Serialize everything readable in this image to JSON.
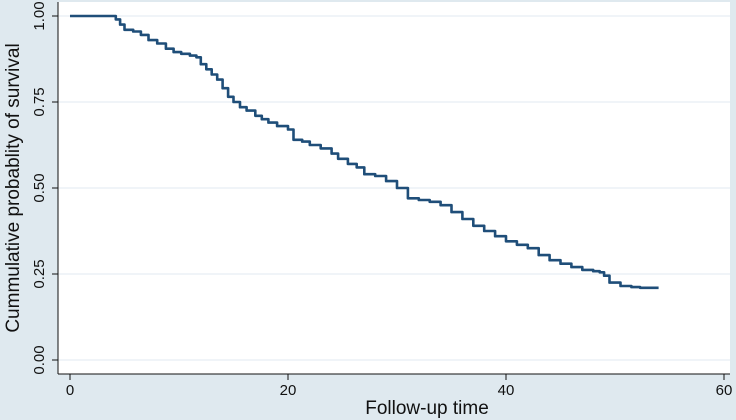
{
  "chart_data": {
    "type": "line",
    "title": "",
    "xlabel": "Follow-up time",
    "ylabel": "Cummulative probablity of survival",
    "xlim": [
      0,
      60
    ],
    "ylim": [
      0,
      1
    ],
    "x_ticks": [
      0,
      20,
      40,
      60
    ],
    "x_tick_labels": [
      "0",
      "20",
      "40",
      "60"
    ],
    "y_ticks": [
      0,
      0.25,
      0.5,
      0.75,
      1.0
    ],
    "y_tick_labels": [
      "0.00",
      "0.25",
      "0.50",
      "0.75",
      "1.00"
    ],
    "grid": "horizontal",
    "line_color": "#1f4e79",
    "plot_background": "#ffffff",
    "outer_background": "#dfe9ef",
    "series": [
      {
        "x": [
          0,
          3.8,
          4.2,
          4.6,
          5.0,
          5.8,
          6.5,
          7.2,
          8.0,
          8.8,
          9.5,
          10.2,
          11.0,
          11.6,
          12.0,
          12.5,
          13.0,
          13.5,
          14.0,
          14.5,
          15.0,
          15.6,
          16.2,
          17.0,
          17.6,
          18.2,
          19.0,
          20.0,
          20.5,
          21.3,
          22.0,
          23.0,
          24.0,
          24.6,
          25.5,
          26.3,
          27.0,
          28.0,
          29.0,
          30.0,
          31.0,
          32.0,
          33.0,
          34.0,
          35.0,
          36.0,
          37.0,
          38.0,
          39.0,
          40.0,
          41.0,
          42.0,
          43.0,
          44.0,
          45.0,
          46.0,
          47.0,
          48.0,
          48.6,
          49.0,
          49.5,
          50.5,
          51.5,
          52.3,
          54.0
        ],
        "y": [
          1.0,
          1.0,
          0.99,
          0.975,
          0.96,
          0.955,
          0.945,
          0.93,
          0.92,
          0.905,
          0.895,
          0.89,
          0.885,
          0.88,
          0.86,
          0.845,
          0.83,
          0.815,
          0.79,
          0.765,
          0.75,
          0.735,
          0.725,
          0.71,
          0.7,
          0.69,
          0.68,
          0.67,
          0.64,
          0.635,
          0.625,
          0.615,
          0.6,
          0.585,
          0.57,
          0.56,
          0.54,
          0.535,
          0.52,
          0.5,
          0.47,
          0.465,
          0.46,
          0.45,
          0.43,
          0.41,
          0.39,
          0.375,
          0.36,
          0.345,
          0.335,
          0.325,
          0.305,
          0.29,
          0.28,
          0.27,
          0.262,
          0.258,
          0.255,
          0.245,
          0.225,
          0.215,
          0.212,
          0.21,
          0.21
        ]
      }
    ]
  }
}
